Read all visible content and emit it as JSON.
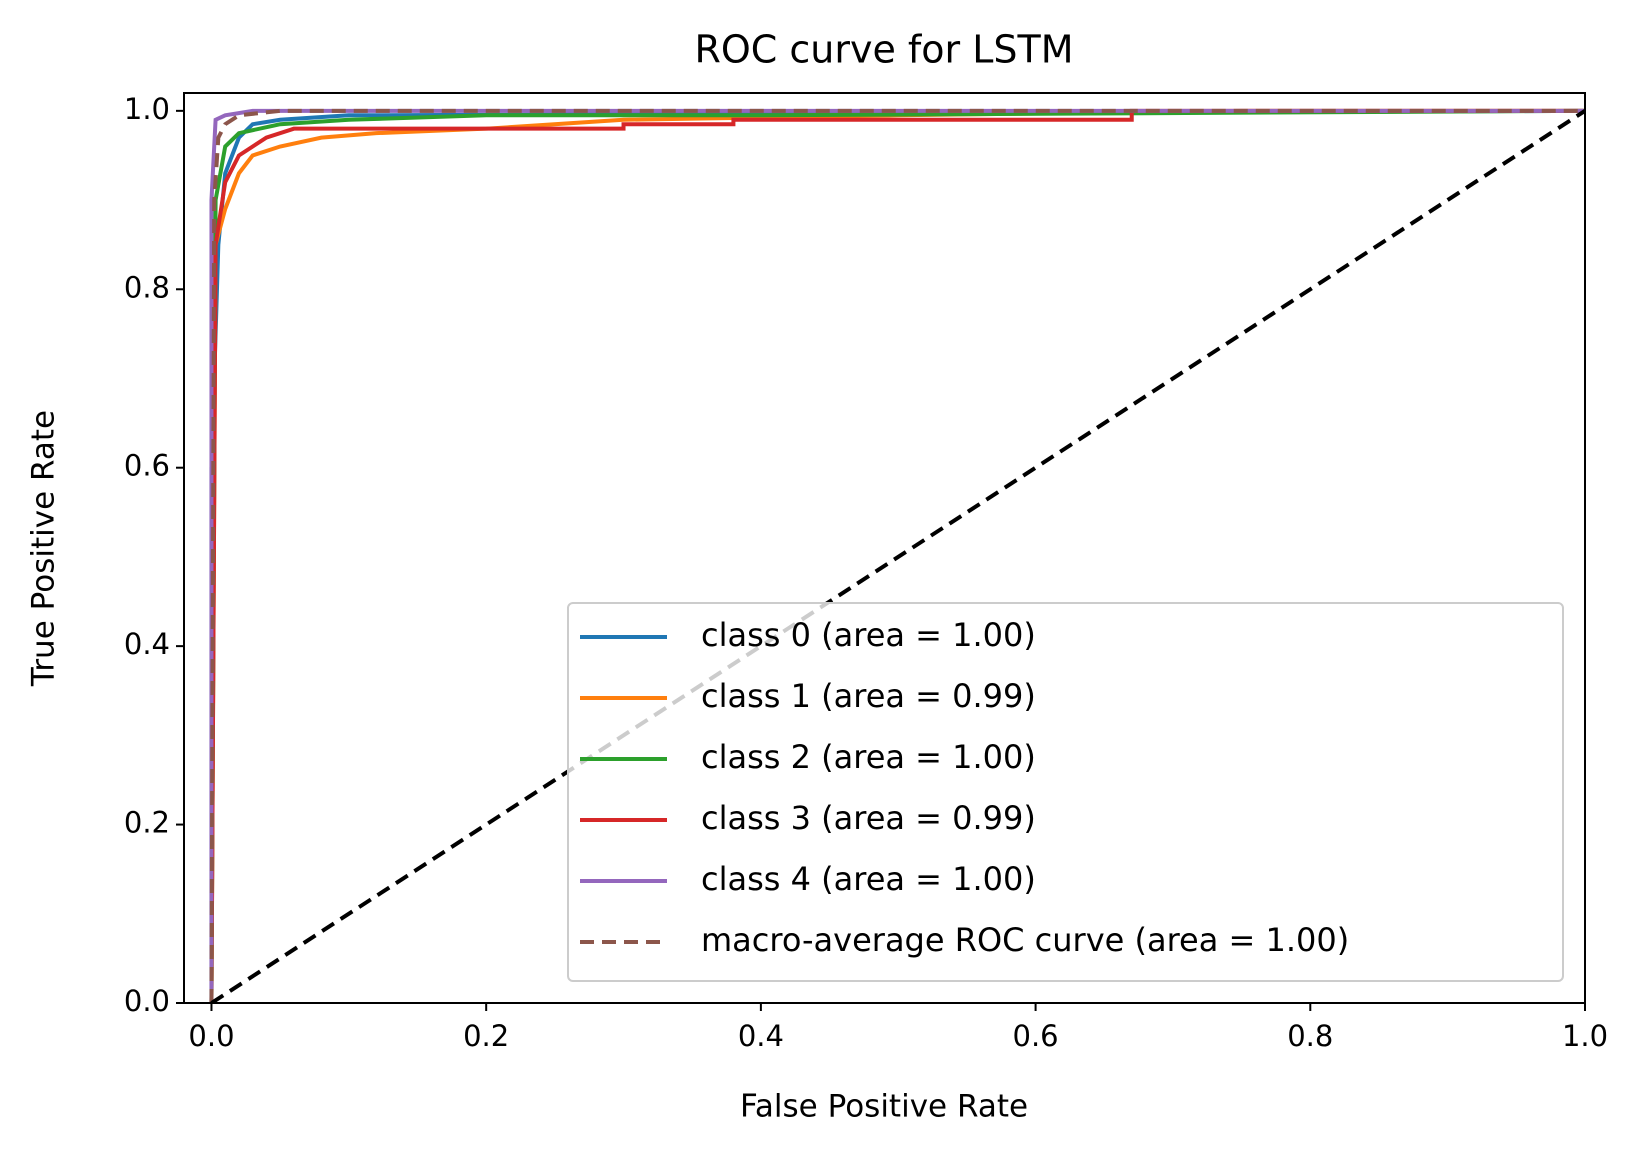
{
  "chart_data": {
    "type": "line",
    "title": "ROC curve for LSTM",
    "x_label": "False Positive Rate",
    "y_label": "True Positive Rate",
    "xlim": [
      -0.02,
      1.0
    ],
    "ylim": [
      0.0,
      1.02
    ],
    "xticks": [
      {
        "value": 0,
        "label": "0.0"
      },
      0.2,
      0.4,
      0.6,
      0.8,
      {
        "value": 1,
        "label": "1.0"
      }
    ],
    "yticks": [
      {
        "value": 0,
        "label": "0.0"
      },
      0.2,
      0.4,
      0.6,
      0.8,
      {
        "value": 1,
        "label": "1.0"
      }
    ],
    "grid": false,
    "legend_loc": "lower right",
    "series": [
      {
        "name": "class 0 (area = 1.00)",
        "color": "#1f77b4",
        "linestyle": "solid",
        "x": [
          0,
          0,
          0.005,
          0.01,
          0.02,
          0.03,
          0.05,
          0.1,
          1
        ],
        "values": [
          0,
          0.6,
          0.85,
          0.93,
          0.97,
          0.985,
          0.99,
          0.995,
          1
        ]
      },
      {
        "name": "class 1 (area = 0.99)",
        "color": "#ff7f0e",
        "linestyle": "solid",
        "x": [
          0,
          0.003,
          0.01,
          0.02,
          0.03,
          0.05,
          0.08,
          0.12,
          0.2,
          0.3,
          0.5,
          0.75,
          1
        ],
        "values": [
          0,
          0.85,
          0.89,
          0.93,
          0.95,
          0.96,
          0.97,
          0.975,
          0.98,
          0.99,
          0.995,
          1,
          1
        ]
      },
      {
        "name": "class 2 (area = 1.00)",
        "color": "#2ca02c",
        "linestyle": "solid",
        "x": [
          0,
          0.003,
          0.01,
          0.02,
          0.05,
          0.1,
          0.2,
          0.4,
          1
        ],
        "values": [
          0,
          0.9,
          0.96,
          0.975,
          0.985,
          0.99,
          0.995,
          0.995,
          1
        ]
      },
      {
        "name": "class 3 (area = 0.99)",
        "color": "#d62728",
        "linestyle": "solid",
        "x": [
          0,
          0.003,
          0.01,
          0.02,
          0.04,
          0.06,
          0.13,
          0.3,
          0.3,
          0.38,
          0.38,
          0.67,
          0.67,
          1
        ],
        "values": [
          0,
          0.85,
          0.92,
          0.95,
          0.97,
          0.98,
          0.98,
          0.98,
          0.985,
          0.985,
          0.99,
          0.99,
          1,
          1
        ]
      },
      {
        "name": "class 4 (area = 1.00)",
        "color": "#9467bd",
        "linestyle": "solid",
        "x": [
          0,
          0,
          0.003,
          0.01,
          0.03,
          1
        ],
        "values": [
          0,
          0.9,
          0.99,
          0.995,
          1,
          1
        ]
      },
      {
        "name": "macro-average ROC curve (area = 1.00)",
        "color": "#8c564b",
        "linestyle": "dashed",
        "x": [
          0,
          0.002,
          0.005,
          0.01,
          0.02,
          0.05,
          1
        ],
        "values": [
          0,
          0.9,
          0.97,
          0.985,
          0.995,
          1,
          1
        ]
      },
      {
        "color": "#000000",
        "linestyle": "dashed",
        "x": [
          0,
          1
        ],
        "values": [
          0,
          1
        ]
      }
    ]
  }
}
